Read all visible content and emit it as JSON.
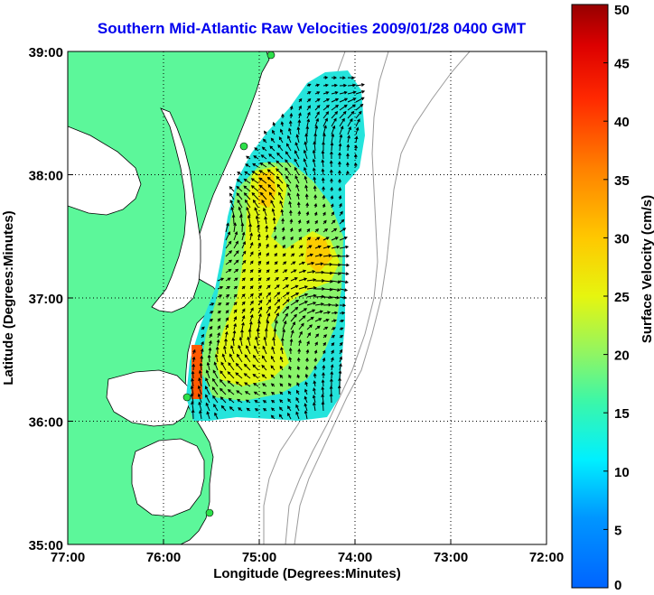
{
  "title": "Southern Mid-Atlantic Raw Velocities 2009/01/28 0400 GMT",
  "map": {
    "xlabel": "Longitude (Degrees:Minutes)",
    "ylabel": "Latitude (Degrees:Minutes)",
    "x_ticks": [
      "77:00",
      "76:00",
      "75:00",
      "74:00",
      "73:00",
      "72:00"
    ],
    "y_ticks": [
      "39:00",
      "38:00",
      "37:00",
      "36:00",
      "35:00"
    ],
    "lon_range": [
      -77,
      -72
    ],
    "lat_range": [
      35,
      39
    ],
    "grid": "dotted",
    "land_color": "#5cf79a",
    "coast_color": "#000000",
    "bathymetry_color": "#9a9a9a",
    "vector_color": "#000000"
  },
  "colorbar": {
    "label": "Surface Velocity (cm/s)",
    "min": 0,
    "max": 50,
    "ticks": [
      "0",
      "5",
      "10",
      "15",
      "20",
      "25",
      "30",
      "35",
      "40",
      "45",
      "50"
    ],
    "colormap": "jet"
  }
}
